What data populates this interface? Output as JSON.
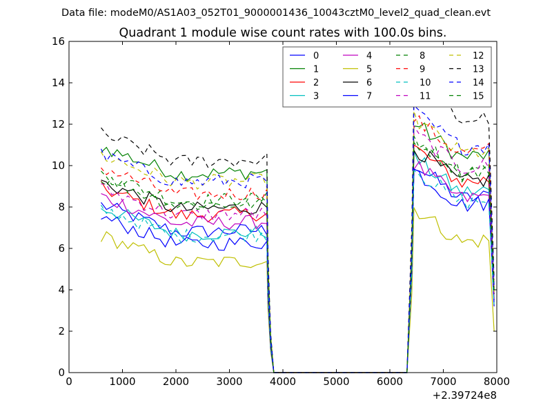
{
  "figure": {
    "suptitle": "Data file: modeM0/AS1A03_052T01_9000001436_10043cztM0_level2_quad_clean.evt",
    "background": "#ffffff"
  },
  "chart_data": {
    "type": "line",
    "title": "Quadrant 1 module wise count rates with 100.0s bins.",
    "xlabel": "",
    "ylabel": "",
    "xlim": [
      0,
      8000
    ],
    "ylim": [
      0,
      16
    ],
    "xticks": [
      0,
      1000,
      2000,
      3000,
      4000,
      5000,
      6000,
      7000,
      8000
    ],
    "yticks": [
      0,
      2,
      4,
      6,
      8,
      10,
      12,
      14,
      16
    ],
    "x_offset_label": "+2.39724e8",
    "grid": false,
    "legend_position": "top-right",
    "legend_columns": 4,
    "segments": [
      {
        "x_start": 600,
        "x_end": 3700,
        "step": 100
      },
      {
        "x_start": 6450,
        "x_end": 7850,
        "step": 100
      }
    ],
    "transitions": {
      "drop": [
        3700,
        3770,
        3830
      ],
      "gap_end": 6320,
      "rise_start": 6370,
      "tail_end": 7950
    },
    "series": [
      {
        "name": "0",
        "color": "#0000ff",
        "dash": "solid",
        "level1": 7.2,
        "level2": 9.0,
        "tail": 3.5
      },
      {
        "name": "1",
        "color": "#008000",
        "dash": "solid",
        "level1": 10.0,
        "level2": 11.0,
        "tail": 4.0
      },
      {
        "name": "2",
        "color": "#ff0000",
        "dash": "solid",
        "level1": 8.0,
        "level2": 9.8,
        "tail": 3.6
      },
      {
        "name": "3",
        "color": "#00bfbf",
        "dash": "solid",
        "level1": 7.1,
        "level2": 9.3,
        "tail": 3.4
      },
      {
        "name": "4",
        "color": "#bf00bf",
        "dash": "solid",
        "level1": 7.6,
        "level2": 9.0,
        "tail": 3.5
      },
      {
        "name": "5",
        "color": "#bfbf00",
        "dash": "solid",
        "level1": 5.7,
        "level2": 6.9,
        "tail": 2.0
      },
      {
        "name": "6",
        "color": "#000000",
        "dash": "solid",
        "level1": 8.3,
        "level2": 9.8,
        "tail": 3.8
      },
      {
        "name": "7",
        "color": "#0000ff",
        "dash": "solid",
        "level1": 6.6,
        "level2": 8.7,
        "tail": 3.2
      },
      {
        "name": "8",
        "color": "#008000",
        "dash": "dashed",
        "level1": 8.7,
        "level2": 10.2,
        "tail": 3.9
      },
      {
        "name": "9",
        "color": "#ff0000",
        "dash": "dashed",
        "level1": 9.0,
        "level2": 11.2,
        "tail": 4.1
      },
      {
        "name": "10",
        "color": "#00bfbf",
        "dash": "dashed",
        "level1": 7.0,
        "level2": 8.8,
        "tail": 3.3
      },
      {
        "name": "11",
        "color": "#bf00bf",
        "dash": "dashed",
        "level1": 8.0,
        "level2": 10.5,
        "tail": 3.7
      },
      {
        "name": "12",
        "color": "#bfbf00",
        "dash": "dashed",
        "level1": 9.6,
        "level2": 11.2,
        "tail": 3.9
      },
      {
        "name": "13",
        "color": "#000000",
        "dash": "dashed",
        "level1": 10.6,
        "level2": 12.8,
        "tail": 4.5
      },
      {
        "name": "14",
        "color": "#0000ff",
        "dash": "dashed",
        "level1": 9.6,
        "level2": 11.5,
        "tail": 4.2
      },
      {
        "name": "15",
        "color": "#008000",
        "dash": "dashed",
        "level1": 8.5,
        "level2": 10.3,
        "tail": 3.8
      }
    ]
  }
}
